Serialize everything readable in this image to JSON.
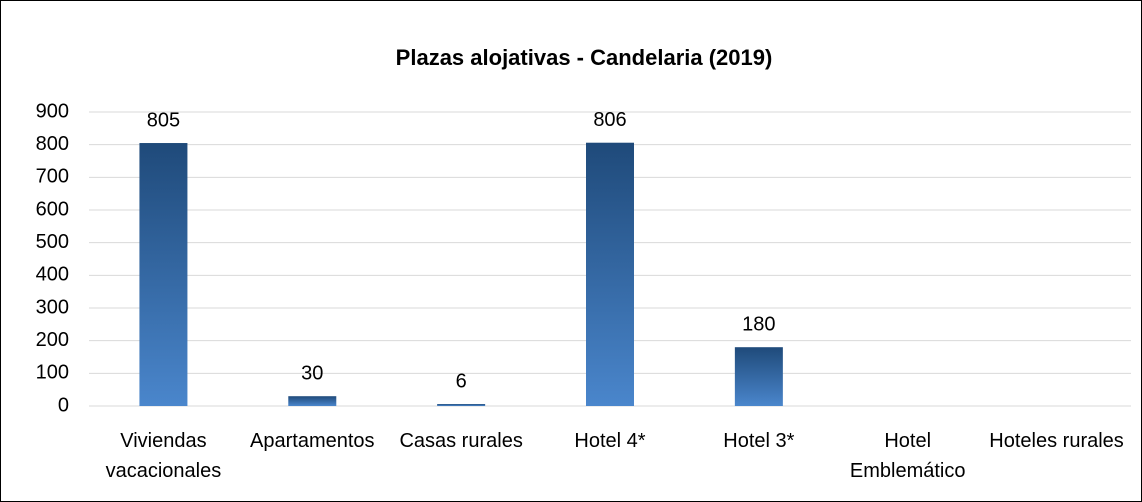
{
  "chart_data": {
    "type": "bar",
    "title": "Plazas alojativas - Candelaria (2019)",
    "categories": [
      "Viviendas vacacionales",
      "Apartamentos",
      "Casas rurales",
      "Hotel 4*",
      "Hotel 3*",
      "Hotel Emblemático",
      "Hoteles rurales"
    ],
    "values": [
      805,
      30,
      6,
      806,
      180,
      null,
      null
    ],
    "color": [
      "#1f4a7a",
      "#4a86cc"
    ],
    "ylim": [
      0,
      900
    ],
    "yticks": [
      0,
      100,
      200,
      300,
      400,
      500,
      600,
      700,
      800,
      900
    ],
    "grid": true
  }
}
